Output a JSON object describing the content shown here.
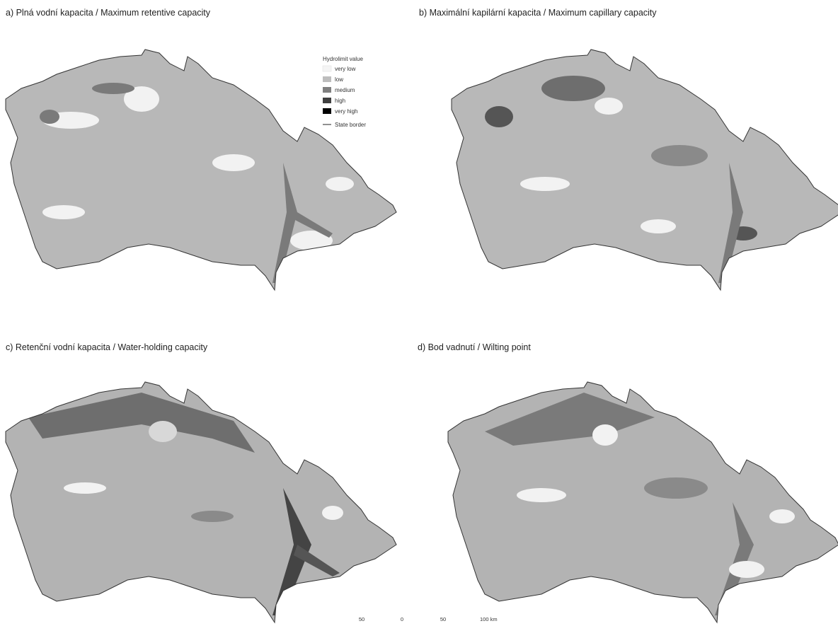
{
  "panels": [
    {
      "title": "a) Plná vodní kapacita / Maximum retentive capacity"
    },
    {
      "title": "b) Maximální kapilární kapacita / Maximum capillary capacity"
    },
    {
      "title": "c) Retenční vodní kapacita / Water-holding capacity"
    },
    {
      "title": "d) Bod vadnutí / Wilting point"
    }
  ],
  "legend": {
    "title": "Hydrolimit value",
    "items": [
      "very low",
      "low",
      "medium",
      "high",
      "very high"
    ],
    "border_label": "State border"
  },
  "scale_bar": {
    "labels": [
      "50",
      "0",
      "50",
      "100 km"
    ]
  }
}
